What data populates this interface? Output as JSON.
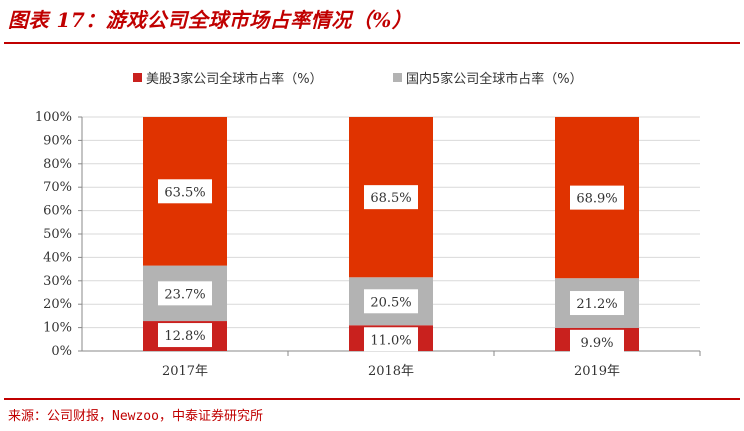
{
  "title": "图表 17：游戏公司全球市场占率情况（%）",
  "source": "来源：公司财报，Newzoo，中泰证券研究所",
  "colors": {
    "title": "#c00000",
    "series_us": "#c9211e",
    "series_cn": "#b3b3b3",
    "series_other": "#e03300",
    "axis": "#888888",
    "grid": "#d9d9d9"
  },
  "legend": [
    {
      "label": "美股3家公司全球市占率（%）",
      "color": "#c9211e"
    },
    {
      "label": "国内5家公司全球市占率（%）",
      "color": "#b3b3b3"
    }
  ],
  "chart_data": {
    "type": "bar",
    "stacked": true,
    "categories": [
      "2017年",
      "2018年",
      "2019年"
    ],
    "series": [
      {
        "name": "美股3家公司全球市占率（%）",
        "values": [
          12.8,
          11.0,
          9.9
        ],
        "labels": [
          "12.8%",
          "11.0%",
          "9.9%"
        ]
      },
      {
        "name": "国内5家公司全球市占率（%）",
        "values": [
          23.7,
          20.5,
          21.2
        ],
        "labels": [
          "23.7%",
          "20.5%",
          "21.2%"
        ]
      },
      {
        "values": [
          63.5,
          68.5,
          68.9
        ],
        "labels": [
          "63.5%",
          "68.5%",
          "68.9%"
        ]
      }
    ],
    "ylim": [
      0,
      100
    ],
    "yticks": [
      "0%",
      "10%",
      "20%",
      "30%",
      "40%",
      "50%",
      "60%",
      "70%",
      "80%",
      "90%",
      "100%"
    ],
    "legend_position": "top",
    "grid": true
  }
}
